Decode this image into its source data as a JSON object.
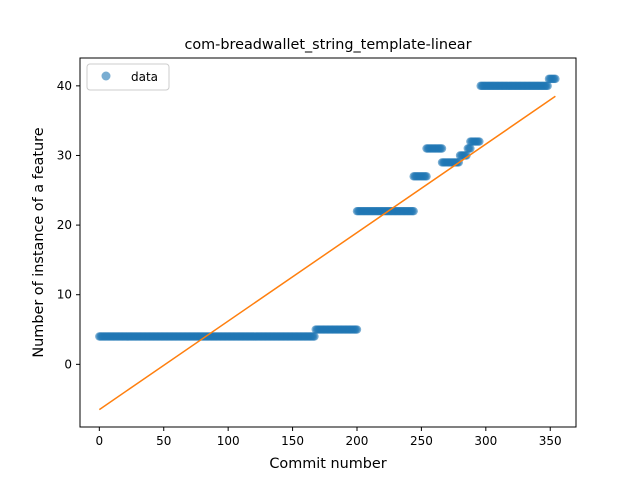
{
  "chart_data": {
    "type": "scatter",
    "title": "com-breadwallet_string_template-linear",
    "xlabel": "Commit number",
    "ylabel": "Number of instance of a feature",
    "xlim": [
      -15,
      370
    ],
    "ylim": [
      -9,
      44
    ],
    "xticks": [
      0,
      50,
      100,
      150,
      200,
      250,
      300,
      350
    ],
    "yticks": [
      0,
      10,
      20,
      30,
      40
    ],
    "grid": false,
    "legend": {
      "position": "upper-left",
      "entries": [
        "data"
      ]
    },
    "colors": {
      "data": "#1f77b4",
      "fit": "#ff7f0e"
    },
    "series": [
      {
        "name": "data",
        "kind": "scatter",
        "segments": [
          {
            "x_start": 0,
            "x_end": 167,
            "y": 4
          },
          {
            "x_start": 168,
            "x_end": 200,
            "y": 5
          },
          {
            "x_start": 200,
            "x_end": 244,
            "y": 22
          },
          {
            "x_start": 244,
            "x_end": 254,
            "y": 27
          },
          {
            "x_start": 254,
            "x_end": 266,
            "y": 31
          },
          {
            "x_start": 266,
            "x_end": 279,
            "y": 29
          },
          {
            "x_start": 280,
            "x_end": 285,
            "y": 30
          },
          {
            "x_start": 286,
            "x_end": 288,
            "y": 31
          },
          {
            "x_start": 288,
            "x_end": 295,
            "y": 32
          },
          {
            "x_start": 296,
            "x_end": 348,
            "y": 40
          },
          {
            "x_start": 349,
            "x_end": 354,
            "y": 41
          }
        ]
      },
      {
        "name": "",
        "kind": "line",
        "x": [
          0,
          354
        ],
        "y": [
          -6.5,
          38.5
        ]
      }
    ]
  }
}
